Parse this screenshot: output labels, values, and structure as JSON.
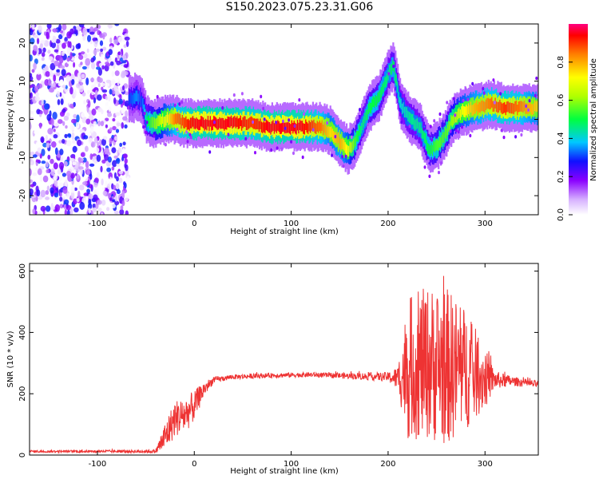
{
  "title": "S150.2023.075.23.31.G06",
  "chart_data": [
    {
      "type": "heatmap",
      "xlabel": "Height of straight line (km)",
      "ylabel": "Frequency (Hz)",
      "xlim": [
        -170,
        355
      ],
      "ylim": [
        -25,
        25
      ],
      "xticks": [
        -100,
        0,
        100,
        200,
        300
      ],
      "yticks": [
        -20,
        -10,
        0,
        10,
        20
      ],
      "colorbar": {
        "label": "Normalized spectral amplitude",
        "range": [
          0.0,
          1.0
        ],
        "ticks": [
          "0.0",
          "0.2",
          "0.4",
          "0.6",
          "0.8"
        ],
        "tick_values": [
          0.0,
          0.2,
          0.4,
          0.6,
          0.8
        ]
      },
      "noise_region_x": [
        -170,
        -68
      ],
      "ridge": {
        "x": [
          -68,
          -60,
          -55,
          -50,
          -45,
          -40,
          -30,
          -20,
          -10,
          0,
          20,
          40,
          60,
          75,
          90,
          110,
          130,
          140,
          150,
          158,
          165,
          172,
          180,
          190,
          200,
          205,
          212,
          222,
          232,
          242,
          250,
          258,
          266,
          275,
          290,
          305,
          320,
          335,
          355
        ],
        "y": [
          5,
          6,
          5,
          0,
          -1,
          -1,
          0,
          0,
          -1,
          -1,
          -1,
          -1,
          -1,
          -2,
          -2,
          -2,
          -2,
          -3,
          -6,
          -8,
          -6,
          -2,
          3,
          6,
          12,
          14,
          4,
          0,
          -2,
          -8,
          -7,
          -4,
          0,
          2,
          3,
          4,
          3,
          3,
          3
        ],
        "amplitude": [
          0.3,
          0.35,
          0.3,
          0.45,
          0.55,
          0.6,
          0.7,
          0.85,
          0.9,
          0.95,
          0.95,
          0.95,
          0.9,
          0.95,
          0.95,
          0.95,
          0.85,
          0.75,
          0.8,
          0.7,
          0.55,
          0.45,
          0.5,
          0.5,
          0.45,
          0.5,
          0.4,
          0.45,
          0.45,
          0.5,
          0.55,
          0.55,
          0.6,
          0.7,
          0.8,
          0.85,
          0.9,
          0.85,
          0.75
        ]
      }
    },
    {
      "type": "line",
      "xlabel": "Height of straight line (km)",
      "ylabel": "SNR (10 * v/v)",
      "xlim": [
        -170,
        355
      ],
      "ylim": [
        0,
        625
      ],
      "xticks": [
        -100,
        0,
        100,
        200,
        300
      ],
      "yticks": [
        0,
        200,
        400,
        600
      ],
      "color": "#ee3333",
      "envelope": {
        "x": [
          -170,
          -100,
          -40,
          -30,
          -20,
          -10,
          0,
          10,
          20,
          40,
          80,
          120,
          160,
          200,
          210,
          220,
          240,
          260,
          280,
          300,
          310,
          330,
          355
        ],
        "mean": [
          12,
          12,
          12,
          60,
          120,
          130,
          160,
          215,
          245,
          255,
          260,
          262,
          258,
          255,
          250,
          280,
          300,
          290,
          280,
          250,
          245,
          240,
          230
        ],
        "spread": [
          4,
          4,
          6,
          50,
          60,
          60,
          50,
          25,
          10,
          8,
          8,
          8,
          10,
          15,
          40,
          230,
          250,
          260,
          200,
          100,
          30,
          15,
          12
        ]
      }
    }
  ]
}
